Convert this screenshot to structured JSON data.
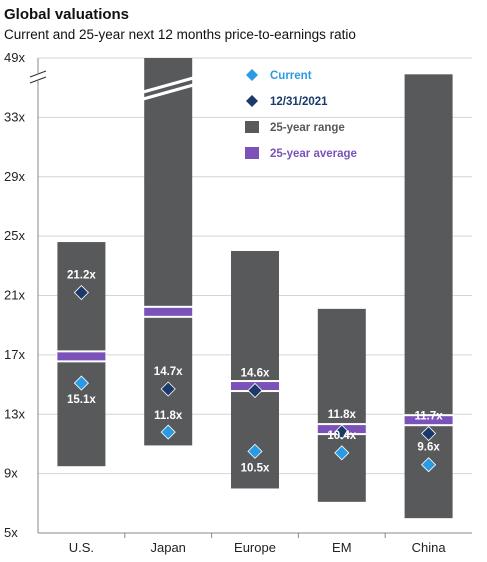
{
  "chart_data": {
    "type": "range-bar",
    "title": "Global valuations",
    "subtitle": "Current and 25-year next 12 months price-to-earnings ratio",
    "categories": [
      "U.S.",
      "Japan",
      "Europe",
      "EM",
      "China"
    ],
    "y_ticks": [
      "5x",
      "9x",
      "13x",
      "17x",
      "21x",
      "25x",
      "29x",
      "33x",
      "49x"
    ],
    "ylim": [
      5,
      37
    ],
    "axis_break": "between 33x and 49x",
    "range_low": [
      9.5,
      10.9,
      8.0,
      7.1,
      6.0
    ],
    "range_high": [
      24.6,
      49,
      24.0,
      20.1,
      35.9
    ],
    "average": [
      16.9,
      19.9,
      14.9,
      12.0,
      12.6
    ],
    "current": [
      15.1,
      11.8,
      10.5,
      10.4,
      9.6
    ],
    "dec_2021": [
      21.2,
      14.7,
      14.6,
      11.8,
      11.7
    ],
    "current_labels": [
      "15.1x",
      "11.8x",
      "10.5x",
      "10.4x",
      "9.6x"
    ],
    "dec_2021_labels": [
      "21.2x",
      "14.7x",
      "14.6x",
      "11.8x",
      "11.7x"
    ],
    "legend": {
      "current": "Current",
      "dec_2021": "12/31/2021",
      "range": "25-year range",
      "average": "25-year average"
    },
    "colors": {
      "range": "#58595b",
      "average": "#7a52b8",
      "current": "#2a9be3",
      "dec_2021": "#1b3a6b",
      "grid": "#d4d4d4"
    },
    "grid": true,
    "legend_position": "top-right"
  }
}
